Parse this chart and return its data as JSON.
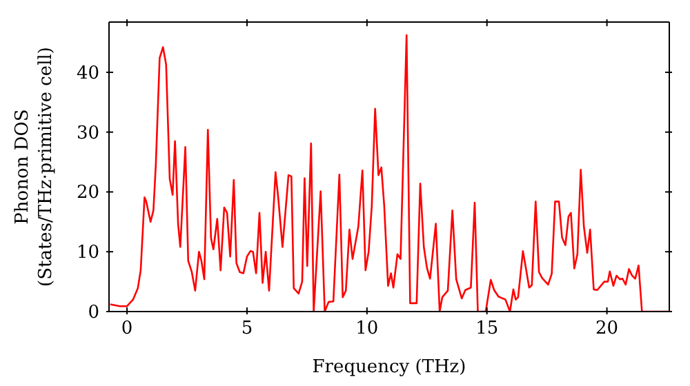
{
  "chart_data": {
    "type": "line",
    "xlabel": "Frequency (THz)",
    "ylabel": "Phonon DOS\n(States/THz·primitive cell)",
    "xlim": [
      -0.75,
      22.6
    ],
    "ylim": [
      0,
      48.4
    ],
    "xticks": [
      0,
      5,
      10,
      15,
      20
    ],
    "yticks": [
      0,
      10,
      20,
      30,
      40
    ],
    "grid": false,
    "legend": false,
    "marker": "none",
    "line_style": "solid",
    "series": [
      {
        "color": "#ff0000",
        "x": [
          -0.7,
          -0.3,
          0.0,
          0.25,
          0.45,
          0.57,
          0.73,
          0.8,
          0.98,
          1.1,
          1.2,
          1.36,
          1.5,
          1.63,
          1.78,
          1.9,
          2.0,
          2.13,
          2.22,
          2.43,
          2.55,
          2.7,
          2.84,
          3.0,
          3.1,
          3.22,
          3.37,
          3.5,
          3.6,
          3.76,
          3.9,
          4.05,
          4.17,
          4.3,
          4.45,
          4.56,
          4.7,
          4.85,
          5.0,
          5.14,
          5.25,
          5.38,
          5.52,
          5.65,
          5.78,
          5.92,
          6.19,
          6.3,
          6.48,
          6.73,
          6.85,
          6.95,
          7.15,
          7.3,
          7.4,
          7.51,
          7.67,
          7.78,
          8.07,
          8.24,
          8.4,
          8.6,
          8.85,
          8.99,
          9.12,
          9.27,
          9.4,
          9.64,
          9.81,
          9.94,
          10.07,
          10.2,
          10.34,
          10.48,
          10.6,
          10.72,
          10.88,
          11.0,
          11.1,
          11.27,
          11.4,
          11.65,
          11.8,
          12.07,
          12.22,
          12.37,
          12.5,
          12.63,
          12.87,
          13.03,
          13.14,
          13.37,
          13.56,
          13.72,
          13.95,
          14.1,
          14.33,
          14.49,
          14.62,
          14.95,
          15.16,
          15.3,
          15.48,
          15.77,
          15.96,
          16.1,
          16.2,
          16.3,
          16.5,
          16.6,
          16.76,
          16.87,
          17.03,
          17.17,
          17.3,
          17.55,
          17.7,
          17.84,
          18.0,
          18.13,
          18.27,
          18.4,
          18.5,
          18.64,
          18.77,
          18.91,
          19.04,
          19.18,
          19.3,
          19.45,
          19.6,
          19.89,
          20.04,
          20.12,
          20.27,
          20.4,
          20.54,
          20.65,
          20.78,
          20.92,
          21.05,
          21.18,
          21.32,
          21.46,
          22.57
        ],
        "values": [
          1.2,
          0.9,
          0.9,
          2.0,
          3.9,
          6.9,
          19.1,
          18.4,
          15,
          16.9,
          24.5,
          42.4,
          44.2,
          41.3,
          22.2,
          19.5,
          28.5,
          14.6,
          10.8,
          27.5,
          8.5,
          6.6,
          3.5,
          10,
          8.5,
          5.4,
          30.4,
          12.3,
          10.4,
          15.5,
          6.9,
          17.4,
          16.5,
          9.2,
          22,
          8.1,
          6.6,
          6.4,
          9.2,
          10.1,
          10,
          6.4,
          16.5,
          4.8,
          10,
          3.5,
          23.3,
          19.1,
          10.8,
          22.8,
          22.6,
          3.9,
          3.0,
          5.0,
          22.3,
          7.6,
          28.1,
          0,
          20.1,
          0,
          1.6,
          1.7,
          22.9,
          2.4,
          3.5,
          13.7,
          8.8,
          14.2,
          23.6,
          6.9,
          10,
          17.6,
          33.9,
          22.8,
          24.1,
          17.6,
          4.3,
          6.4,
          4.0,
          9.6,
          8.8,
          46.2,
          1.4,
          1.4,
          21.4,
          10.8,
          7.3,
          5.5,
          14.7,
          0,
          2.4,
          3.5,
          16.9,
          5.4,
          2.2,
          3.6,
          4.0,
          18.2,
          0,
          0,
          5.3,
          3.6,
          2.5,
          2.0,
          0,
          3.7,
          2.0,
          2.4,
          10.1,
          7.8,
          4.0,
          4.4,
          18.4,
          6.6,
          5.6,
          4.5,
          6.3,
          18.4,
          18.4,
          12.4,
          11.1,
          15.9,
          16.5,
          7.2,
          9.6,
          23.7,
          14.2,
          9.8,
          13.7,
          3.7,
          3.6,
          5.0,
          5.0,
          6.7,
          4.3,
          6.0,
          5.4,
          5.5,
          4.5,
          7.1,
          6.0,
          5.5,
          7.7,
          0,
          0
        ]
      }
    ]
  }
}
